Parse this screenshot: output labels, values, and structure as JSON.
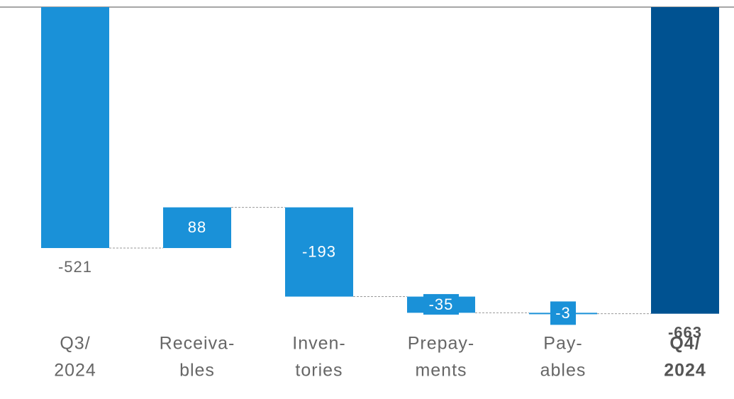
{
  "chart_data": {
    "type": "waterfall",
    "categories": [
      [
        "Q3/",
        "2024"
      ],
      [
        "Receiva-",
        "bles"
      ],
      [
        "Inven-",
        "tories"
      ],
      [
        "Prepay-",
        "ments"
      ],
      [
        "Pay-",
        "ables"
      ],
      [
        "Q4/",
        "2024"
      ]
    ],
    "values": [
      -521,
      88,
      -193,
      -35,
      -3,
      -663
    ],
    "measure": [
      "total",
      "relative",
      "relative",
      "relative",
      "relative",
      "total"
    ],
    "colors": [
      "#1a91d8",
      "#1a91d8",
      "#1a91d8",
      "#1a91d8",
      "#1a91d8",
      "#005291"
    ],
    "bold": [
      false,
      false,
      false,
      false,
      false,
      true
    ],
    "ylim": [
      -800,
      0
    ]
  }
}
